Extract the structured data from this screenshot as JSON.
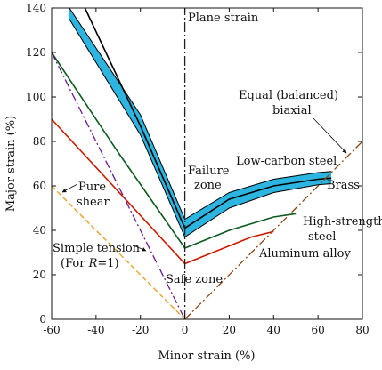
{
  "chart_data": {
    "type": "line",
    "title": "",
    "xlabel": "Minor  strain  (%)",
    "ylabel": "Major  strain  (%)",
    "xlim": [
      -60,
      80
    ],
    "ylim": [
      0,
      140
    ],
    "xticks": [
      -60,
      -40,
      -20,
      0,
      20,
      40,
      60,
      80
    ],
    "yticks": [
      0,
      20,
      40,
      60,
      80,
      100,
      120,
      140
    ],
    "xtick_labels": [
      "-60",
      "-40",
      "-20",
      "0",
      "20",
      "40",
      "60",
      "80"
    ],
    "ytick_labels": [
      "0",
      "20",
      "40",
      "60",
      "80",
      "100",
      "120",
      "140"
    ],
    "grid": false,
    "legend": "none",
    "bands": [
      {
        "name": "Low-carbon  steel",
        "color": "#2bb5e0",
        "upper": {
          "x": [
            -52,
            -20,
            0,
            20,
            40,
            60,
            66
          ],
          "y": [
            140,
            92,
            45,
            57,
            63,
            66,
            66.5
          ]
        },
        "lower": {
          "x": [
            -52,
            -20,
            0,
            20,
            40,
            60,
            66
          ],
          "y": [
            135,
            83,
            37,
            50,
            57,
            60.5,
            61
          ]
        }
      }
    ],
    "series": [
      {
        "name": "Brass",
        "color": "#000000",
        "x": [
          -45,
          -20,
          0,
          20,
          40,
          60,
          66
        ],
        "y": [
          140,
          87,
          41,
          54,
          60,
          63,
          63.5
        ]
      },
      {
        "name": "High-strength  steel",
        "color": "#0b5a1e",
        "x": [
          -60,
          -30,
          0,
          20,
          40,
          50
        ],
        "y": [
          120,
          75,
          32,
          40,
          46,
          47.5
        ]
      },
      {
        "name": "Aluminum  alloy",
        "color": "#cc1a00",
        "x": [
          -60,
          0,
          20,
          30,
          40
        ],
        "y": [
          90,
          25,
          33,
          37,
          39.5
        ]
      },
      {
        "name": "Pure  shear",
        "color": "#e89a1c",
        "dash": "6,3",
        "x": [
          -60,
          0
        ],
        "y": [
          60,
          0
        ]
      },
      {
        "name": "Simple  tension",
        "color": "#6a1a8e",
        "dash": "9,3,2,3",
        "x": [
          -60,
          0
        ],
        "y": [
          120,
          0
        ]
      },
      {
        "name": "Equal  (balanced)  biaxial",
        "color": "#8b4513",
        "dash": "9,3,2,3",
        "x": [
          0,
          80
        ],
        "y": [
          0,
          80
        ]
      },
      {
        "name": "Plane  strain",
        "color": "#222222",
        "dash": "11,3,2,3",
        "x": [
          0,
          0
        ],
        "y": [
          0,
          140
        ]
      }
    ],
    "annotations": {
      "plane_strain": "Plane  strain",
      "failure_1": "Failure",
      "failure_2": "zone",
      "equal_1": "Equal  (balanced)",
      "equal_2": "biaxial",
      "low_carbon": "Low-carbon  steel",
      "brass": "Brass",
      "high_strength_1": "High-strength",
      "high_strength_2": "steel",
      "aluminum": "Aluminum  alloy",
      "pure_1": "Pure",
      "pure_2": "shear",
      "simple_1": "Simple  tension",
      "simple_2a": "(For  ",
      "simple_2b": "R",
      "simple_2c": "=1)",
      "safe": "Safe  zone"
    }
  }
}
